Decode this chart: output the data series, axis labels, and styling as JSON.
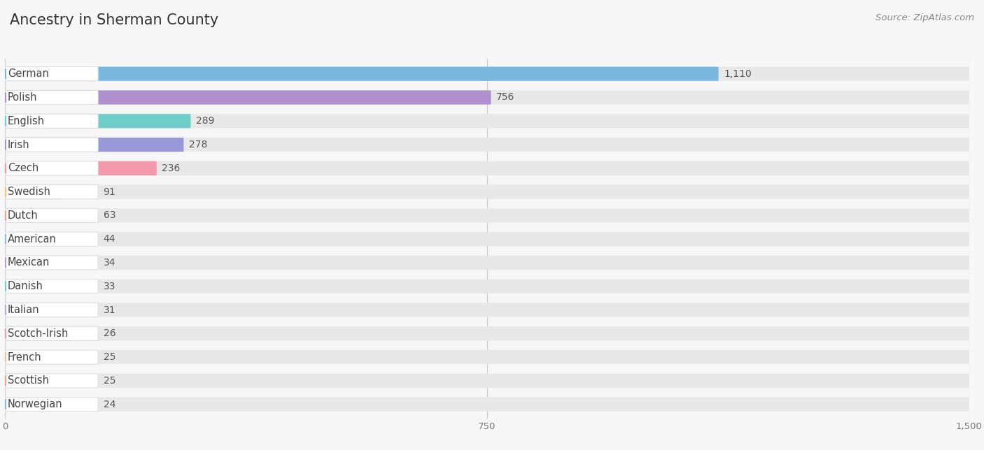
{
  "title": "Ancestry in Sherman County",
  "source": "Source: ZipAtlas.com",
  "categories": [
    "German",
    "Polish",
    "English",
    "Irish",
    "Czech",
    "Swedish",
    "Dutch",
    "American",
    "Mexican",
    "Danish",
    "Italian",
    "Scotch-Irish",
    "French",
    "Scottish",
    "Norwegian"
  ],
  "values": [
    1110,
    756,
    289,
    278,
    236,
    91,
    63,
    44,
    34,
    33,
    31,
    26,
    25,
    25,
    24
  ],
  "colors": [
    "#7AB8E0",
    "#B090CC",
    "#6ECDC8",
    "#9898D8",
    "#F498AC",
    "#F4C07A",
    "#F0A090",
    "#90B8E4",
    "#C098CC",
    "#6ECDC8",
    "#A8ACED",
    "#F498B8",
    "#F4C098",
    "#F0A090",
    "#90B8E4"
  ],
  "xlim": [
    0,
    1500
  ],
  "xticks": [
    0,
    750,
    1500
  ],
  "bg_color": "#f7f7f7",
  "bar_bg_color": "#e8e8e8",
  "label_bg_color": "#ffffff",
  "title_fontsize": 15,
  "value_fontsize": 10,
  "label_fontsize": 10.5
}
